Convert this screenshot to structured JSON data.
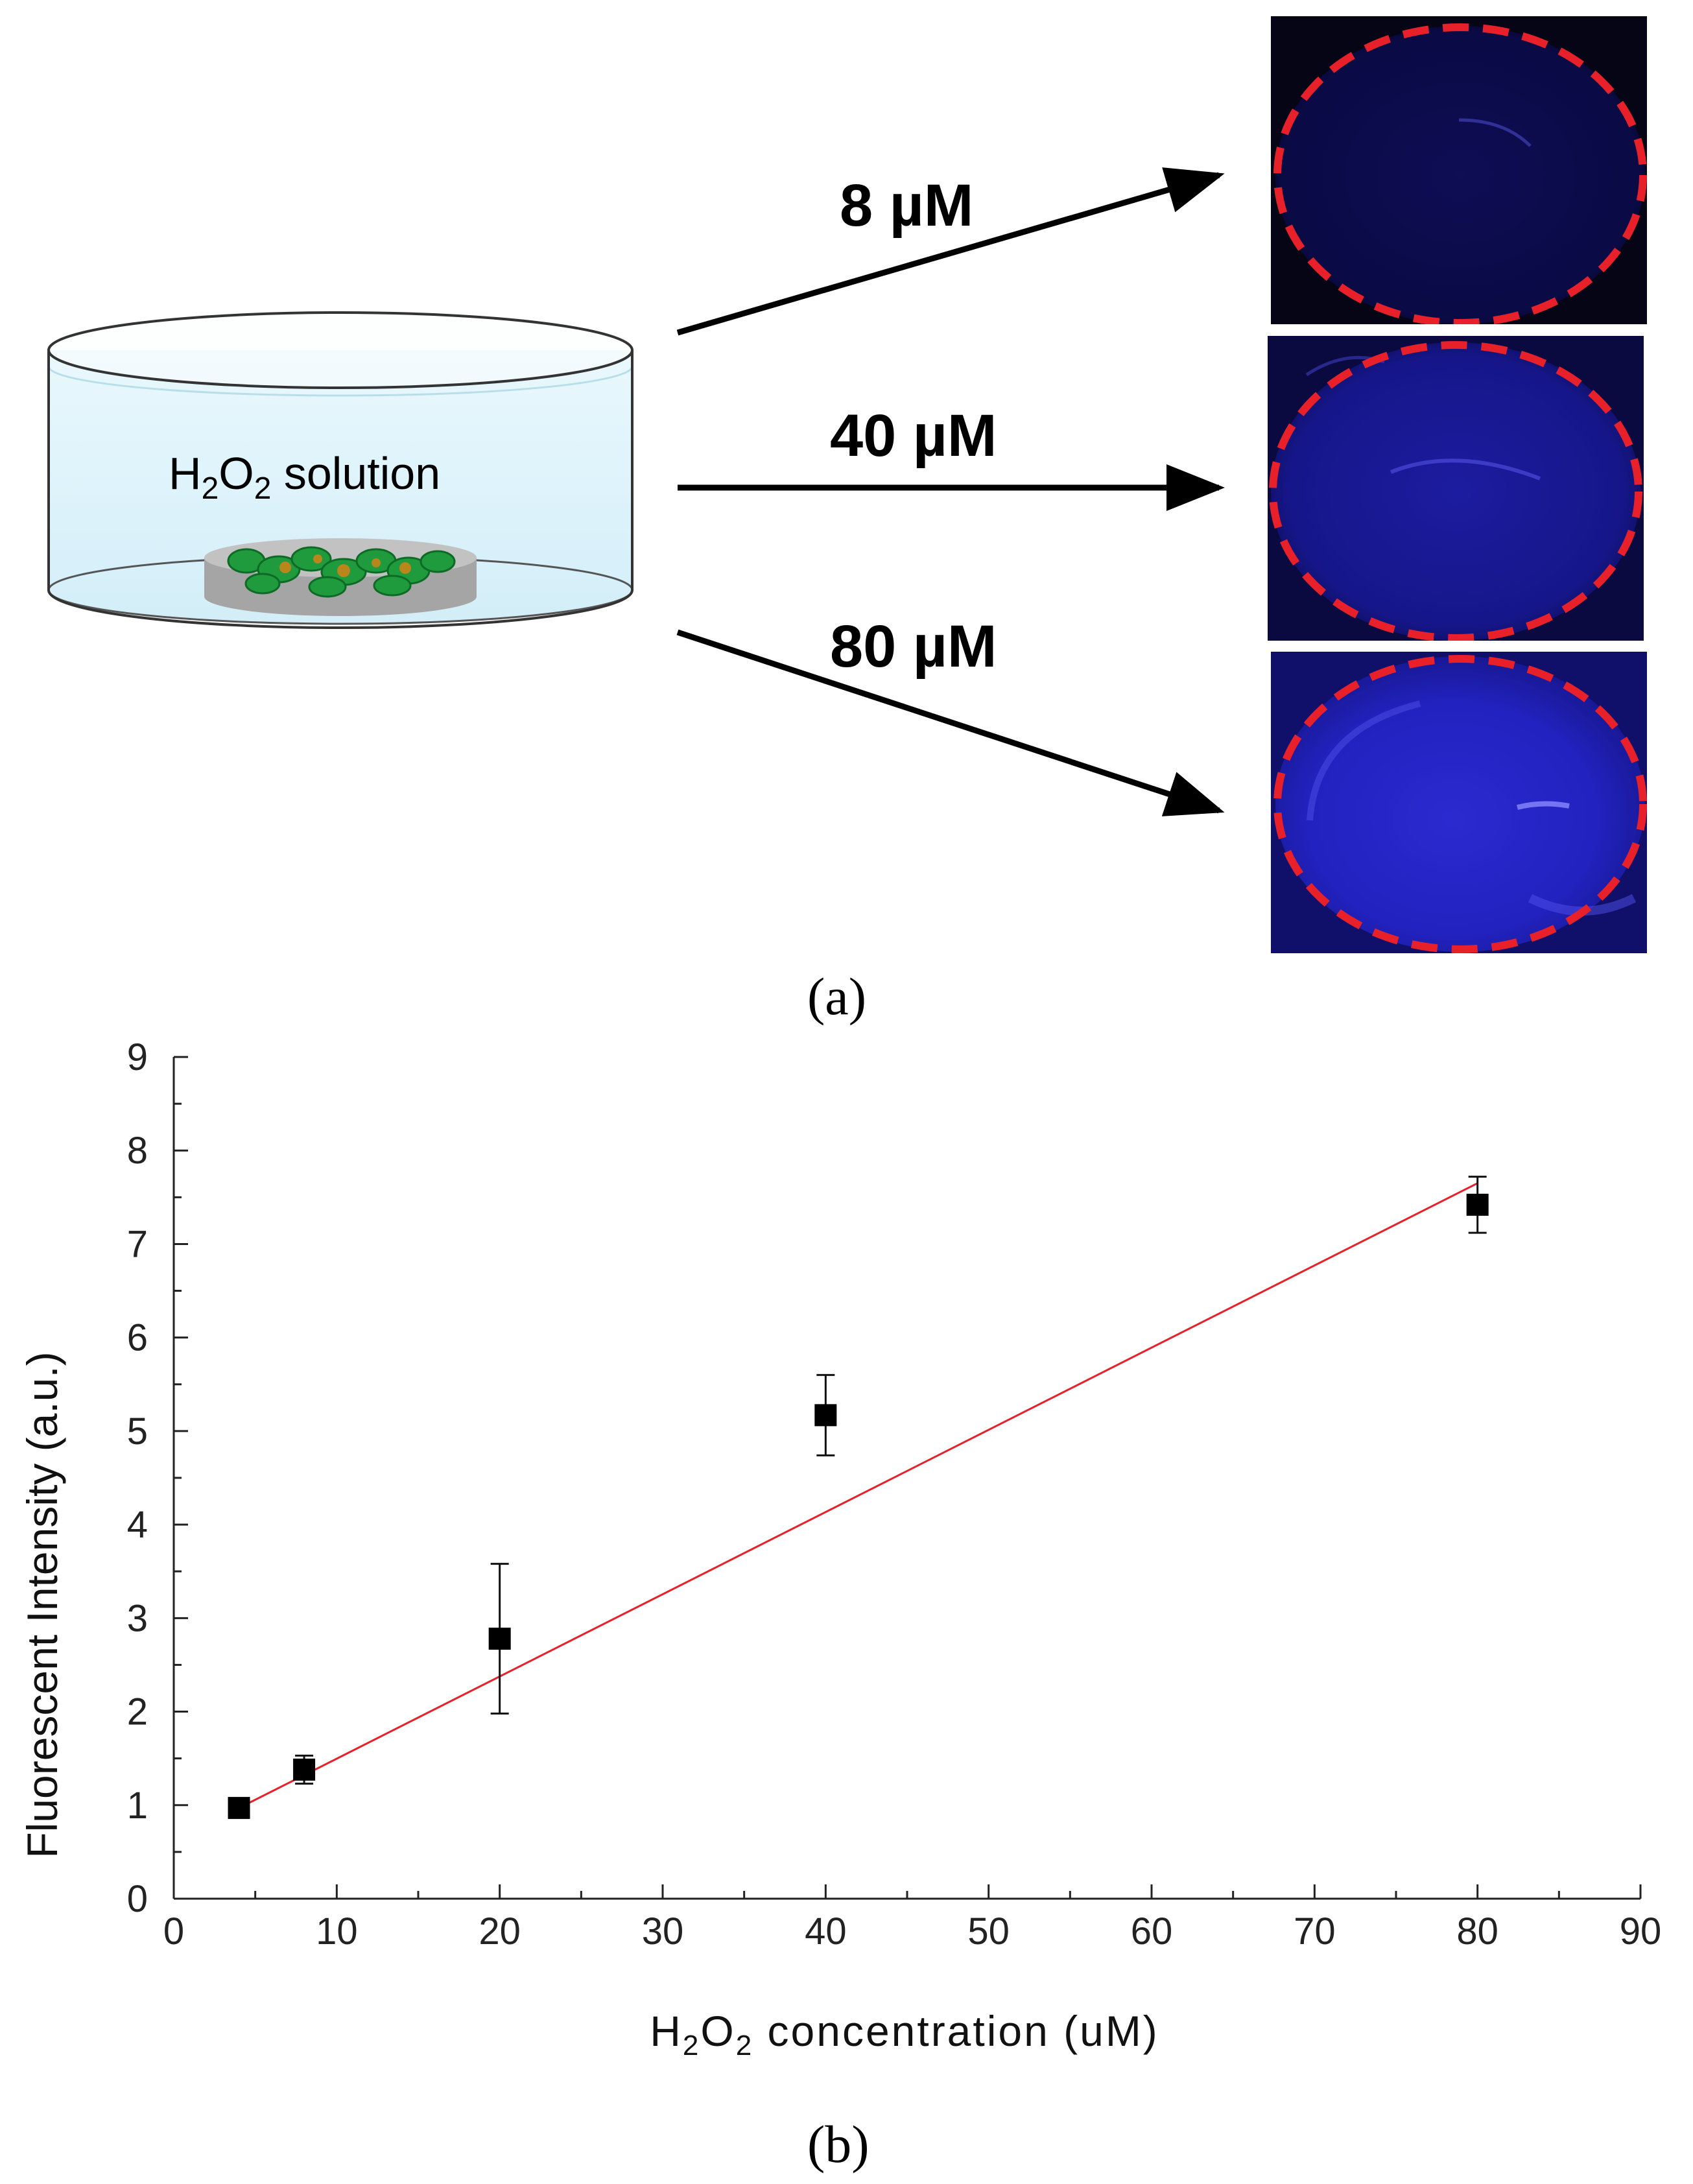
{
  "panel_a": {
    "dish_label_prefix": "H",
    "dish_label_sub1": "2",
    "dish_label_mid": "O",
    "dish_label_sub2": "2",
    "dish_label_suffix": " solution",
    "concentrations": [
      "8 µM",
      "40 µM",
      "80 µM"
    ],
    "label": "(a)",
    "colors": {
      "dashed_circle": "#e8202a",
      "well_blue": "#1a1ab0",
      "dish_fluid": "#dff3fb"
    }
  },
  "panel_b": {
    "label": "(b)"
  },
  "chart_data": {
    "type": "scatter",
    "xlabel_prefix": "H",
    "xlabel_sub1": "2",
    "xlabel_mid": "O",
    "xlabel_sub2": "2",
    "xlabel_suffix": " concentration (uM)",
    "ylabel": "Fluorescent Intensity (a.u.)",
    "xlim": [
      0,
      90
    ],
    "ylim": [
      0,
      9
    ],
    "xticks": [
      0,
      10,
      20,
      30,
      40,
      50,
      60,
      70,
      80,
      90
    ],
    "yticks": [
      0,
      1,
      2,
      3,
      4,
      5,
      6,
      7,
      8,
      9
    ],
    "points": [
      {
        "x": 4,
        "y": 0.97,
        "err": 0.05
      },
      {
        "x": 8,
        "y": 1.38,
        "err": 0.15
      },
      {
        "x": 20,
        "y": 2.78,
        "err": 0.8
      },
      {
        "x": 40,
        "y": 5.17,
        "err": 0.43
      },
      {
        "x": 80,
        "y": 7.42,
        "err": 0.3
      }
    ],
    "fit_line": {
      "x": [
        4,
        80
      ],
      "y": [
        0.97,
        7.65
      ]
    },
    "colors": {
      "points": "#000000",
      "fit": "#e8202a"
    },
    "grid": false
  }
}
